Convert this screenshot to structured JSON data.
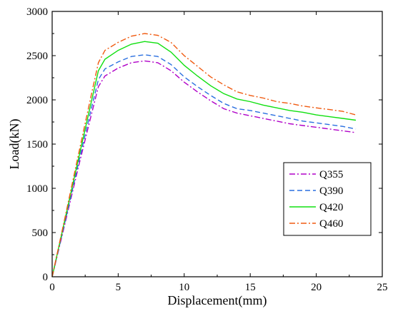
{
  "chart_data": {
    "type": "line",
    "title": "",
    "xlabel": "Displacement(mm)",
    "ylabel": "Load(kN)",
    "xlim": [
      0,
      25
    ],
    "ylim": [
      0,
      3000
    ],
    "xticks": [
      0,
      5,
      10,
      15,
      20,
      25
    ],
    "yticks": [
      0,
      500,
      1000,
      1500,
      2000,
      2500,
      3000
    ],
    "grid": false,
    "legend_position": "center-right",
    "series": [
      {
        "name": "Q355",
        "color": "#b000c8",
        "dash": "dash-dot",
        "points": [
          [
            0,
            0
          ],
          [
            1,
            620
          ],
          [
            2,
            1250
          ],
          [
            3,
            1850
          ],
          [
            3.5,
            2150
          ],
          [
            4,
            2270
          ],
          [
            5,
            2360
          ],
          [
            6,
            2420
          ],
          [
            7,
            2440
          ],
          [
            8,
            2420
          ],
          [
            9,
            2330
          ],
          [
            10,
            2200
          ],
          [
            11,
            2090
          ],
          [
            12,
            1990
          ],
          [
            13,
            1900
          ],
          [
            14,
            1850
          ],
          [
            15,
            1820
          ],
          [
            16,
            1790
          ],
          [
            17,
            1760
          ],
          [
            18,
            1730
          ],
          [
            19,
            1710
          ],
          [
            20,
            1690
          ],
          [
            21,
            1670
          ],
          [
            22,
            1650
          ],
          [
            23,
            1630
          ]
        ]
      },
      {
        "name": "Q390",
        "color": "#2a6fe0",
        "dash": "dash",
        "points": [
          [
            0,
            0
          ],
          [
            1,
            640
          ],
          [
            2,
            1290
          ],
          [
            3,
            1920
          ],
          [
            3.5,
            2230
          ],
          [
            4,
            2350
          ],
          [
            5,
            2430
          ],
          [
            6,
            2490
          ],
          [
            7,
            2510
          ],
          [
            8,
            2490
          ],
          [
            9,
            2400
          ],
          [
            10,
            2260
          ],
          [
            11,
            2150
          ],
          [
            12,
            2050
          ],
          [
            13,
            1960
          ],
          [
            14,
            1900
          ],
          [
            15,
            1880
          ],
          [
            16,
            1850
          ],
          [
            17,
            1820
          ],
          [
            18,
            1790
          ],
          [
            19,
            1760
          ],
          [
            20,
            1740
          ],
          [
            21,
            1720
          ],
          [
            22,
            1700
          ],
          [
            23,
            1670
          ]
        ]
      },
      {
        "name": "Q420",
        "color": "#10e010",
        "dash": "solid",
        "points": [
          [
            0,
            0
          ],
          [
            1,
            670
          ],
          [
            2,
            1340
          ],
          [
            3,
            2000
          ],
          [
            3.5,
            2330
          ],
          [
            4,
            2460
          ],
          [
            5,
            2560
          ],
          [
            6,
            2630
          ],
          [
            7,
            2660
          ],
          [
            8,
            2640
          ],
          [
            9,
            2540
          ],
          [
            10,
            2390
          ],
          [
            11,
            2270
          ],
          [
            12,
            2160
          ],
          [
            13,
            2070
          ],
          [
            14,
            2010
          ],
          [
            15,
            1980
          ],
          [
            16,
            1940
          ],
          [
            17,
            1910
          ],
          [
            18,
            1880
          ],
          [
            19,
            1860
          ],
          [
            20,
            1830
          ],
          [
            21,
            1810
          ],
          [
            22,
            1790
          ],
          [
            23,
            1770
          ]
        ]
      },
      {
        "name": "Q460",
        "color": "#f05a10",
        "dash": "dash-dot",
        "points": [
          [
            0,
            0
          ],
          [
            1,
            690
          ],
          [
            2,
            1390
          ],
          [
            3,
            2080
          ],
          [
            3.5,
            2420
          ],
          [
            4,
            2560
          ],
          [
            5,
            2650
          ],
          [
            6,
            2720
          ],
          [
            7,
            2750
          ],
          [
            8,
            2730
          ],
          [
            9,
            2650
          ],
          [
            10,
            2500
          ],
          [
            11,
            2380
          ],
          [
            12,
            2260
          ],
          [
            13,
            2170
          ],
          [
            14,
            2090
          ],
          [
            15,
            2050
          ],
          [
            16,
            2020
          ],
          [
            17,
            1980
          ],
          [
            18,
            1960
          ],
          [
            19,
            1930
          ],
          [
            20,
            1910
          ],
          [
            21,
            1890
          ],
          [
            22,
            1870
          ],
          [
            23,
            1830
          ]
        ]
      }
    ]
  }
}
